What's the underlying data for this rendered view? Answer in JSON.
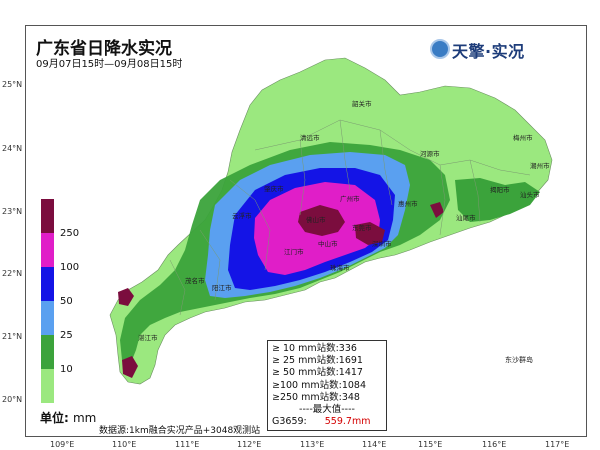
{
  "title": "广东省日降水实况",
  "subtitle": "09月07日15时—09月08日15时",
  "brand": {
    "name": "天擎·实况",
    "logo_icon": "globe-logo-icon"
  },
  "latitude_labels": [
    "25°N",
    "24°N",
    "23°N",
    "22°N",
    "21°N",
    "20°N"
  ],
  "longitude_labels": [
    "109°E",
    "110°E",
    "111°E",
    "112°E",
    "113°E",
    "114°E",
    "115°E",
    "116°E",
    "117°E"
  ],
  "legend": {
    "levels": [
      {
        "label": "",
        "color": "#7b0d3e"
      },
      {
        "label": "250",
        "color": "#e01ec8"
      },
      {
        "label": "100",
        "color": "#1414e6"
      },
      {
        "label": "50",
        "color": "#5aa0f0"
      },
      {
        "label": "25",
        "color": "#3ba33b"
      },
      {
        "label": "10",
        "color": "#9be87f"
      }
    ],
    "unit_label": "单位: ",
    "unit_value": "mm"
  },
  "datasource": "数据源:1km融合实况产品+3048观测站",
  "stats": {
    "rows": [
      "≥ 10 mm站数:336",
      "≥ 25 mm站数:1691",
      "≥ 50 mm站数:1417",
      "≥100 mm站数:1084",
      "≥250 mm站数:348"
    ],
    "max_label": "----最大值----",
    "peak_station": "G3659:",
    "peak_value": "559.7mm"
  },
  "cities": [
    "韶关市",
    "清远市",
    "河源市",
    "梅州市",
    "潮州市",
    "汕头市",
    "揭阳市",
    "汕尾市",
    "惠州市",
    "广州市",
    "东莞市",
    "深圳市",
    "佛山市",
    "中山市",
    "江门市",
    "珠海市",
    "肇庆市",
    "云浮市",
    "阳江市",
    "茂名市",
    "湛江市"
  ],
  "island_label": "东沙群岛",
  "colors": {
    "land": "#9be87f",
    "sea": "#ffffff",
    "border": "#555555"
  }
}
